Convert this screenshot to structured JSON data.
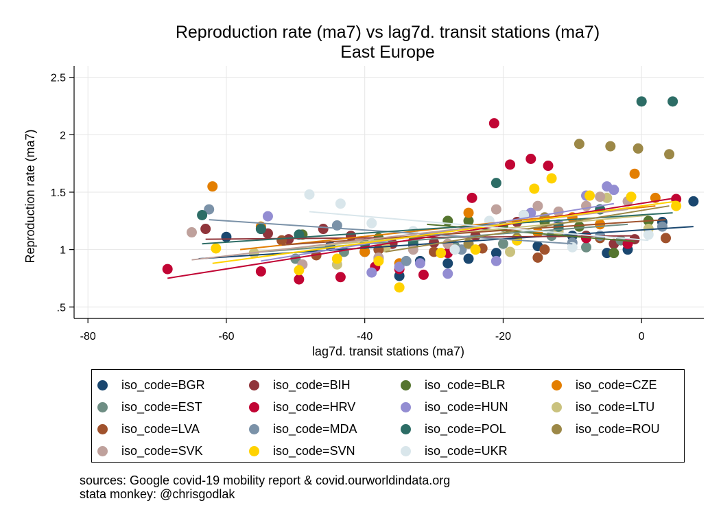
{
  "notes": {
    "source": "sources: Google covid-19 mobility report & covid.ourworldindata.org",
    "author": "stata monkey: @chrisgodlak"
  },
  "chart_data": {
    "type": "scatter",
    "title": "Reproduction rate (ma7) vs lag7d. transit stations (ma7)",
    "subtitle": "East Europe",
    "xlabel": "lag7d. transit stations (ma7)",
    "ylabel": "Reproduction rate (ma7)",
    "xlim": [
      -82,
      9
    ],
    "ylim": [
      0.4,
      2.6
    ],
    "xticks": [
      -80,
      -60,
      -40,
      -20,
      0
    ],
    "xtick_labels": [
      "-80",
      "-60",
      "-40",
      "-20",
      "0"
    ],
    "yticks": [
      0.5,
      1,
      1.5,
      2,
      2.5
    ],
    "ytick_labels": [
      ".5",
      "1",
      "1.5",
      "2",
      "2.5"
    ],
    "grid": true,
    "legend_position": "bottom",
    "series": [
      {
        "name": "iso_code=BGR",
        "color": "#1a476f",
        "x": [
          -60,
          -55,
          -45,
          -40,
          -35,
          -32,
          -28,
          -25,
          -21,
          -15,
          -10,
          -5,
          -2,
          3,
          7.5
        ],
        "y": [
          1.11,
          1.18,
          1.03,
          0.98,
          0.77,
          0.9,
          0.88,
          0.92,
          0.97,
          1.03,
          1.12,
          0.97,
          1.0,
          1.24,
          1.42
        ],
        "fit": [
          [
            -64,
            0.92
          ],
          [
            7.5,
            1.2
          ]
        ]
      },
      {
        "name": "iso_code=BIH",
        "color": "#90353b",
        "x": [
          -63,
          -54,
          -51,
          -46,
          -42,
          -36,
          -30,
          -24,
          -18,
          -12,
          -8,
          -4,
          -1
        ],
        "y": [
          1.18,
          1.14,
          1.09,
          1.18,
          1.12,
          1.05,
          1.06,
          1.12,
          1.24,
          1.18,
          1.12,
          1.05,
          1.09
        ],
        "fit": [
          [
            -63,
            1.09
          ],
          [
            -1,
            1.12
          ]
        ]
      },
      {
        "name": "iso_code=BLR",
        "color": "#55752f",
        "x": [
          -49,
          -38,
          -33,
          -28,
          -25,
          -20,
          -14,
          -9,
          -4,
          1
        ],
        "y": [
          1.13,
          1.1,
          1.07,
          1.25,
          1.25,
          1.2,
          1.24,
          1.2,
          0.97,
          1.25
        ],
        "fit": [
          [
            -31,
            1.22
          ],
          [
            -1,
            1.07
          ]
        ]
      },
      {
        "name": "iso_code=CZE",
        "color": "#e37e00",
        "x": [
          -62,
          -55,
          -40,
          -35,
          -25,
          -15,
          -10,
          -6,
          -1,
          2
        ],
        "y": [
          1.55,
          1.2,
          0.98,
          0.88,
          1.32,
          1.15,
          1.28,
          1.22,
          1.66,
          1.45
        ],
        "fit": [
          [
            -58,
            1.0
          ],
          [
            2,
            1.38
          ]
        ]
      },
      {
        "name": "iso_code=EST",
        "color": "#6e8e84",
        "x": [
          -50,
          -43,
          -38,
          -33,
          -27,
          -20,
          -13,
          -8,
          -3
        ],
        "y": [
          0.92,
          0.98,
          1.0,
          1.04,
          1.03,
          1.05,
          1.12,
          1.02,
          1.08
        ],
        "fit": [
          [
            -55,
            0.98
          ],
          [
            -2,
            1.22
          ]
        ]
      },
      {
        "name": "iso_code=HRV",
        "color": "#c10534",
        "x": [
          -68.5,
          -55,
          -49.5,
          -43.5,
          -38.5,
          -35,
          -31.5,
          -28,
          -24.5,
          -21.3,
          -19,
          -16,
          -13.5,
          -8,
          -2,
          5
        ],
        "y": [
          0.83,
          0.81,
          0.74,
          0.76,
          0.85,
          0.83,
          0.78,
          0.97,
          1.45,
          2.1,
          1.74,
          1.79,
          1.73,
          1.1,
          1.05,
          1.44
        ],
        "fit": [
          [
            -68.5,
            0.75
          ],
          [
            5,
            1.45
          ]
        ]
      },
      {
        "name": "iso_code=HUN",
        "color": "#938dd2",
        "x": [
          -54,
          -39,
          -35,
          -32,
          -28,
          -21,
          -16,
          -12,
          -8,
          -5,
          -4
        ],
        "y": [
          1.29,
          0.8,
          0.85,
          0.88,
          0.79,
          0.9,
          1.32,
          1.22,
          1.47,
          1.55,
          1.52
        ],
        "fit": [
          [
            -55,
            0.9
          ],
          [
            -4,
            1.4
          ]
        ]
      },
      {
        "name": "iso_code=LTU",
        "color": "#cac27e",
        "x": [
          -56,
          -44,
          -37,
          -28,
          -19,
          -12,
          -5,
          1
        ],
        "y": [
          0.97,
          0.87,
          1.02,
          1.05,
          0.98,
          1.15,
          1.45,
          1.18
        ],
        "fit": [
          [
            -56,
            0.98
          ],
          [
            1,
            1.3
          ]
        ]
      },
      {
        "name": "iso_code=LVA",
        "color": "#a0522d",
        "x": [
          -52,
          -47,
          -38,
          -30,
          -23,
          -15,
          -14,
          -6,
          3.5
        ],
        "y": [
          1.08,
          0.95,
          1.0,
          0.98,
          1.01,
          0.93,
          1.0,
          1.1,
          1.1
        ],
        "fit": [
          [
            -52,
            1.04
          ],
          [
            3.5,
            1.26
          ]
        ]
      },
      {
        "name": "iso_code=MDA",
        "color": "#7b92a8",
        "x": [
          -62.5,
          -44,
          -38,
          -34,
          -26,
          -18,
          -10,
          -6,
          3
        ],
        "y": [
          1.35,
          1.21,
          0.92,
          0.9,
          1.0,
          1.08,
          1.06,
          1.12,
          1.2
        ],
        "fit": [
          [
            -62.5,
            1.26
          ],
          [
            -10,
            1.05
          ]
        ]
      },
      {
        "name": "iso_code=POL",
        "color": "#2d6d66",
        "x": [
          -63.5,
          -55,
          -49.5,
          -40,
          -33,
          -21,
          -17,
          -12,
          -6,
          0,
          4.5
        ],
        "y": [
          1.3,
          1.18,
          1.13,
          1.05,
          1.05,
          1.58,
          1.3,
          1.2,
          1.35,
          2.29,
          2.29
        ],
        "fit": [
          [
            -63.5,
            1.05
          ],
          [
            4.5,
            1.32
          ]
        ]
      },
      {
        "name": "iso_code=ROU",
        "color": "#9c8847",
        "x": [
          -25,
          -18,
          -14,
          -9,
          -4.5,
          -0.5,
          4
        ],
        "y": [
          1.05,
          1.1,
          1.28,
          1.92,
          1.9,
          1.88,
          1.83
        ],
        "fit": [
          [
            -37,
            0.98
          ],
          [
            4,
            1.38
          ]
        ]
      },
      {
        "name": "iso_code=SVK",
        "color": "#bfa19c",
        "x": [
          -65,
          -49,
          -38,
          -33,
          -28,
          -21,
          -15,
          -12,
          -8,
          -6,
          -2
        ],
        "y": [
          1.15,
          0.87,
          0.93,
          1.0,
          1.05,
          1.35,
          1.38,
          1.33,
          1.38,
          1.46,
          1.42
        ],
        "fit": [
          [
            -65,
            0.91
          ],
          [
            -2,
            1.35
          ]
        ]
      },
      {
        "name": "iso_code=SVN",
        "color": "#ffd200",
        "x": [
          -61.5,
          -49.5,
          -44,
          -38,
          -35,
          -29,
          -24,
          -18,
          -15.5,
          -13,
          -7.5,
          -1.5,
          5
        ],
        "y": [
          1.01,
          0.82,
          0.92,
          0.9,
          0.67,
          0.97,
          1.0,
          1.08,
          1.53,
          1.62,
          1.47,
          1.46,
          1.38
        ],
        "fit": [
          [
            -62,
            0.88
          ],
          [
            5,
            1.42
          ]
        ]
      },
      {
        "name": "iso_code=UKR",
        "color": "#d9e6eb",
        "x": [
          -48,
          -43.5,
          -39,
          -33,
          -27,
          -22,
          -17,
          -10,
          1
        ],
        "y": [
          1.48,
          1.4,
          1.23,
          1.16,
          1.0,
          1.25,
          1.3,
          1.02,
          1.13
        ],
        "fit": [
          [
            -48,
            1.33
          ],
          [
            1,
            1.08
          ]
        ]
      }
    ]
  }
}
